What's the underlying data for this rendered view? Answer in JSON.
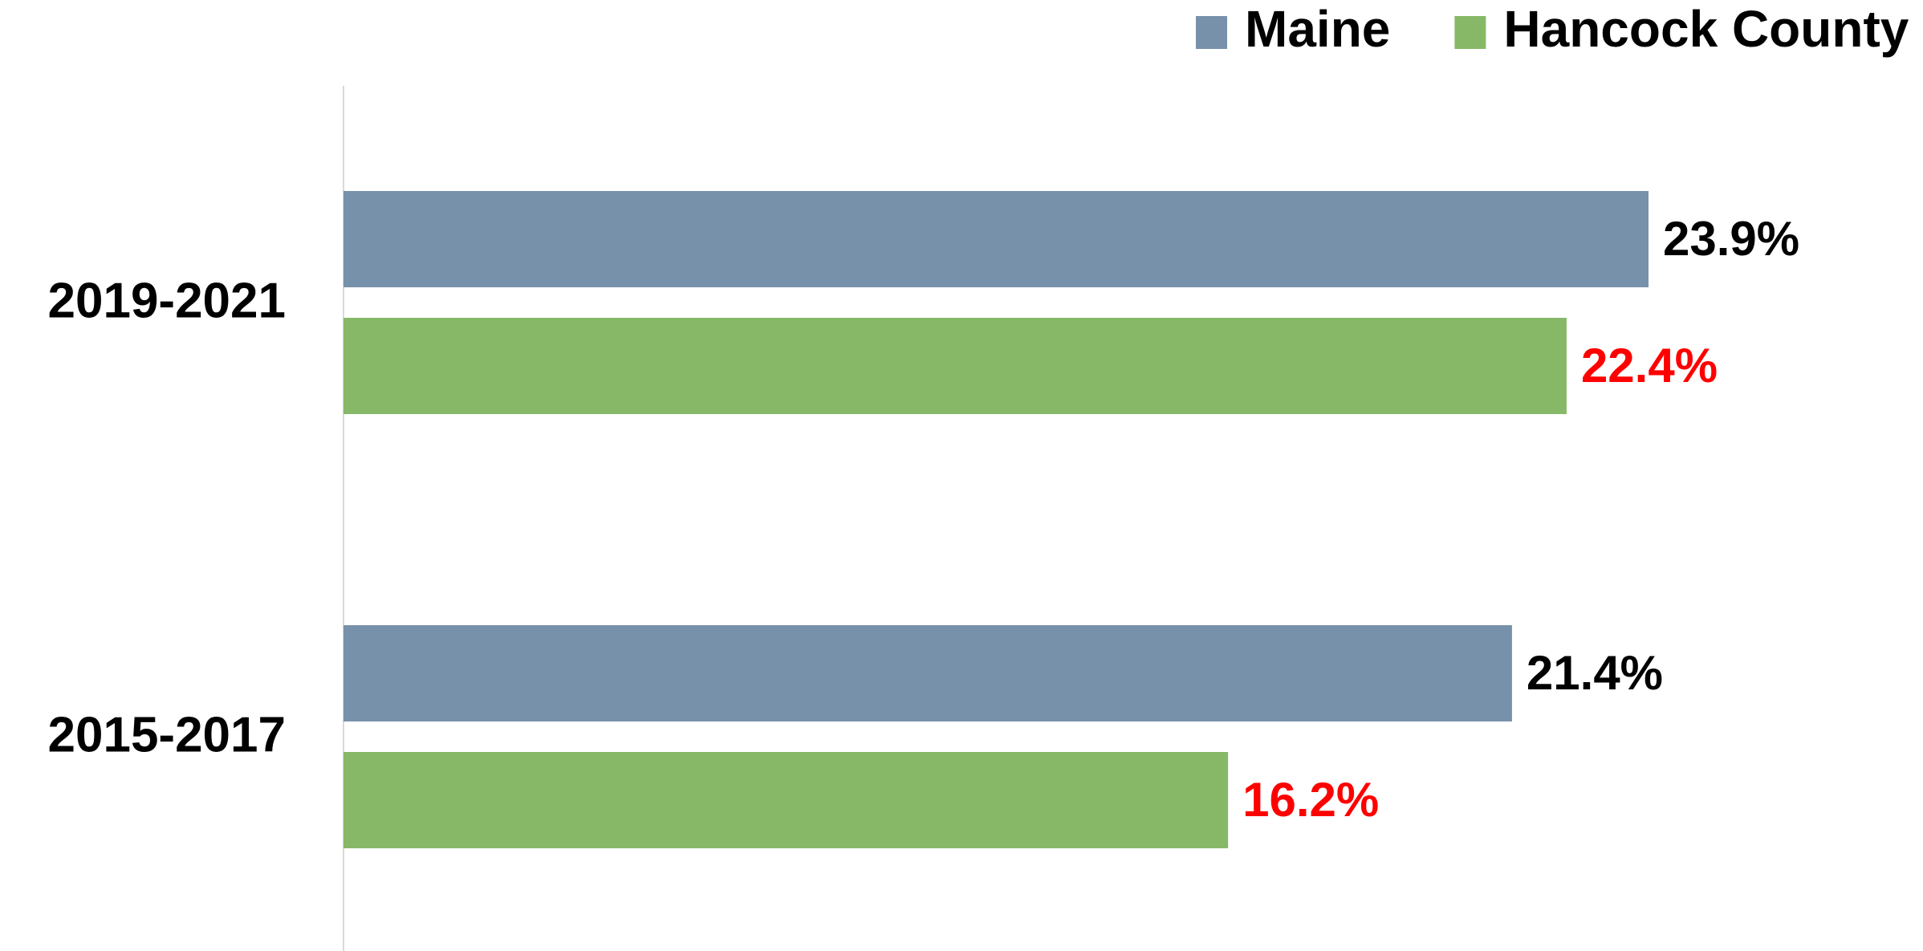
{
  "chart_data": {
    "type": "hbar",
    "categories": [
      "2019-2021",
      "2015-2017"
    ],
    "series": [
      {
        "name": "Maine",
        "color": "#7891aa",
        "label_color": "#000000",
        "values": [
          23.9,
          21.4
        ],
        "value_labels": [
          "23.9%",
          "21.4%"
        ]
      },
      {
        "name": "Hancock County",
        "color": "#86b868",
        "label_color": "#ff0000",
        "values": [
          22.4,
          16.2
        ],
        "value_labels": [
          "22.4%",
          "16.2%"
        ]
      }
    ],
    "legend": "top-right"
  }
}
